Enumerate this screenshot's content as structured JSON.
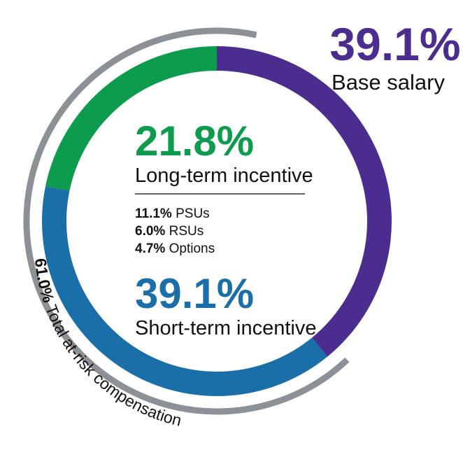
{
  "chart_data": {
    "type": "pie",
    "variant": "donut",
    "slices": [
      {
        "label": "Base salary",
        "value": 39.1,
        "value_text": "39.1%",
        "color": "#4A2D8F"
      },
      {
        "label": "Short-term incentive",
        "value": 39.1,
        "value_text": "39.1%",
        "color": "#1A6FA8"
      },
      {
        "label": "Long-term incentive",
        "value": 21.8,
        "value_text": "21.8%",
        "color": "#0D9B4E"
      }
    ],
    "long_term_breakdown": [
      {
        "value_text": "11.1%",
        "label": "PSUs"
      },
      {
        "value_text": "6.0%",
        "label": "RSUs"
      },
      {
        "value_text": "4.7%",
        "label": "Options"
      }
    ],
    "at_risk": {
      "value": 61.0,
      "value_text": "61.0%",
      "label": "Total at-risk compensation",
      "color": "#8C9196"
    }
  }
}
